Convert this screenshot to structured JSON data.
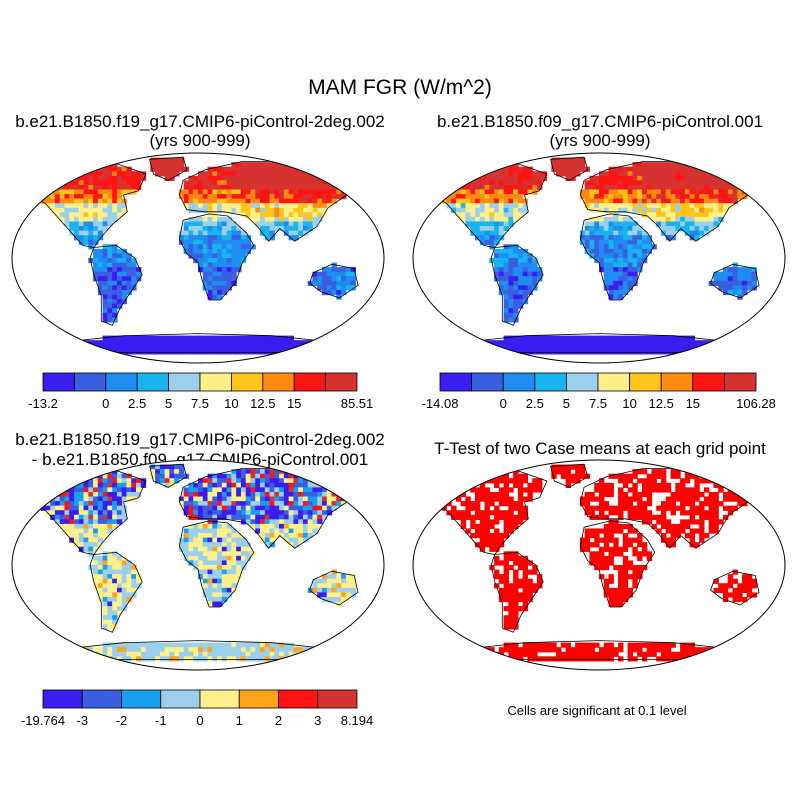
{
  "figure": {
    "title": "MAM FGR (W/m^2)",
    "note": "Cells are significant at 0.1 level"
  },
  "chart_data": [
    {
      "type": "heatmap",
      "panel": "top-left",
      "title_line1": "b.e21.B1850.f19_g17.CMIP6-piControl-2deg.002",
      "title_line2": "(yrs 900-999)",
      "variable": "FGR",
      "units": "W/m^2",
      "colorbar": {
        "colors": [
          "#3a1df0",
          "#3a5fe0",
          "#1e8cf0",
          "#18b4f0",
          "#9ccfeb",
          "#fff08a",
          "#ffc41a",
          "#ff8a10",
          "#ff1414",
          "#d63230"
        ],
        "labels": [
          "-13.2",
          "0",
          "2.5",
          "5",
          "7.5",
          "10",
          "12.5",
          "15",
          "85.51"
        ],
        "label_at_edge": [
          0,
          2,
          3,
          4,
          5,
          6,
          7,
          8,
          10
        ]
      }
    },
    {
      "type": "heatmap",
      "panel": "top-right",
      "title_line1": "b.e21.B1850.f09_g17.CMIP6-piControl.001",
      "title_line2": "(yrs 900-999)",
      "variable": "FGR",
      "units": "W/m^2",
      "colorbar": {
        "colors": [
          "#3a1df0",
          "#3a5fe0",
          "#1e8cf0",
          "#18b4f0",
          "#9ccfeb",
          "#fff08a",
          "#ffc41a",
          "#ff8a10",
          "#ff1414",
          "#d63230"
        ],
        "labels": [
          "-14.08",
          "0",
          "2.5",
          "5",
          "7.5",
          "10",
          "12.5",
          "15",
          "106.28"
        ],
        "label_at_edge": [
          0,
          2,
          3,
          4,
          5,
          6,
          7,
          8,
          10
        ]
      }
    },
    {
      "type": "heatmap",
      "panel": "bottom-left",
      "title_line1": "b.e21.B1850.f19_g17.CMIP6-piControl-2deg.002",
      "title_line2": "- b.e21.B1850.f09_g17.CMIP6-piControl.001",
      "variable": "FGR difference",
      "units": "W/m^2",
      "colorbar": {
        "colors": [
          "#3a1df0",
          "#3a5fe0",
          "#18a0f0",
          "#9ccfeb",
          "#fff08a",
          "#ffa41a",
          "#ff1414",
          "#d63230"
        ],
        "labels": [
          "-19.764",
          "-3",
          "-2",
          "-1",
          "0",
          "1",
          "2",
          "3",
          "8.194"
        ],
        "label_at_edge": [
          0,
          1,
          2,
          3,
          4,
          5,
          6,
          7,
          8
        ]
      }
    },
    {
      "type": "heatmap",
      "panel": "bottom-right",
      "title_line1": "T-Test of two Case means at each grid point",
      "variable": "significance mask",
      "significance_level": 0.1,
      "significant_color": "#ff0000"
    }
  ]
}
